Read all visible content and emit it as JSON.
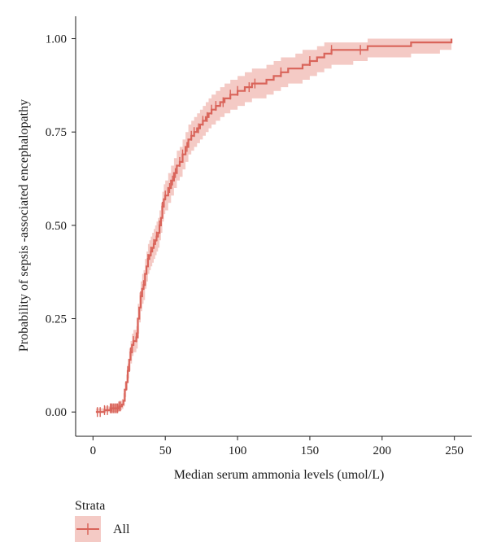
{
  "colors": {
    "line": "#d9645a",
    "band": "#f0b8b2",
    "axis": "#1a1a1a"
  },
  "chart_data": {
    "type": "line",
    "title": "",
    "xlabel": "Median serum ammonia levels (umol/L)",
    "ylabel": "Probability of sepsis -associated encephalopathy",
    "xlim": [
      -12,
      262
    ],
    "ylim": [
      -0.065,
      1.06
    ],
    "x_ticks": [
      0,
      50,
      100,
      150,
      200,
      250
    ],
    "x_tick_labels": [
      "0",
      "50",
      "100",
      "150",
      "200",
      "250"
    ],
    "y_ticks": [
      0,
      0.25,
      0.5,
      0.75,
      1.0
    ],
    "y_tick_labels": [
      "0.00",
      "0.25",
      "0.50",
      "0.75",
      "1.00"
    ],
    "grid": false,
    "legend": {
      "position": "bottom-left",
      "title": "Strata"
    },
    "series": [
      {
        "name": "All",
        "step": true,
        "x": [
          2,
          8,
          12,
          15,
          18,
          20,
          21,
          22,
          23,
          24,
          25,
          26,
          27,
          28,
          29,
          30,
          31,
          32,
          33,
          34,
          35,
          36,
          37,
          38,
          39,
          40,
          41,
          42,
          43,
          44,
          45,
          46,
          47,
          48,
          49,
          50,
          52,
          54,
          56,
          58,
          60,
          62,
          64,
          66,
          68,
          70,
          72,
          74,
          76,
          78,
          80,
          82,
          85,
          88,
          91,
          95,
          100,
          105,
          110,
          115,
          120,
          125,
          130,
          135,
          140,
          145,
          150,
          155,
          160,
          165,
          170,
          180,
          190,
          200,
          210,
          220,
          230,
          240,
          248
        ],
        "y": [
          0.0,
          0.005,
          0.01,
          0.01,
          0.015,
          0.02,
          0.03,
          0.06,
          0.08,
          0.11,
          0.14,
          0.16,
          0.18,
          0.19,
          0.19,
          0.2,
          0.25,
          0.28,
          0.31,
          0.33,
          0.34,
          0.37,
          0.39,
          0.41,
          0.42,
          0.43,
          0.44,
          0.45,
          0.46,
          0.47,
          0.48,
          0.5,
          0.52,
          0.55,
          0.57,
          0.58,
          0.6,
          0.62,
          0.64,
          0.66,
          0.67,
          0.69,
          0.71,
          0.73,
          0.74,
          0.75,
          0.76,
          0.77,
          0.78,
          0.79,
          0.8,
          0.81,
          0.82,
          0.83,
          0.84,
          0.85,
          0.86,
          0.87,
          0.88,
          0.88,
          0.89,
          0.9,
          0.91,
          0.92,
          0.92,
          0.93,
          0.94,
          0.95,
          0.96,
          0.97,
          0.97,
          0.97,
          0.98,
          0.98,
          0.98,
          0.99,
          0.99,
          0.99,
          1.0
        ],
        "ci_lower": [
          0.0,
          0.0,
          0.0,
          0.0,
          0.005,
          0.008,
          0.015,
          0.04,
          0.06,
          0.09,
          0.11,
          0.13,
          0.15,
          0.16,
          0.16,
          0.17,
          0.21,
          0.24,
          0.27,
          0.29,
          0.3,
          0.33,
          0.35,
          0.37,
          0.38,
          0.39,
          0.4,
          0.41,
          0.42,
          0.43,
          0.44,
          0.46,
          0.48,
          0.51,
          0.53,
          0.54,
          0.56,
          0.58,
          0.6,
          0.62,
          0.63,
          0.65,
          0.67,
          0.69,
          0.7,
          0.71,
          0.72,
          0.73,
          0.74,
          0.75,
          0.76,
          0.77,
          0.78,
          0.79,
          0.8,
          0.81,
          0.82,
          0.83,
          0.84,
          0.84,
          0.85,
          0.86,
          0.87,
          0.88,
          0.88,
          0.89,
          0.9,
          0.91,
          0.92,
          0.93,
          0.93,
          0.94,
          0.95,
          0.95,
          0.95,
          0.96,
          0.96,
          0.97,
          0.98
        ],
        "ci_upper": [
          0.01,
          0.015,
          0.02,
          0.022,
          0.03,
          0.035,
          0.05,
          0.08,
          0.1,
          0.13,
          0.17,
          0.19,
          0.21,
          0.22,
          0.22,
          0.23,
          0.29,
          0.32,
          0.35,
          0.37,
          0.38,
          0.41,
          0.43,
          0.45,
          0.46,
          0.47,
          0.48,
          0.49,
          0.5,
          0.51,
          0.52,
          0.54,
          0.56,
          0.59,
          0.61,
          0.62,
          0.64,
          0.66,
          0.68,
          0.7,
          0.71,
          0.73,
          0.75,
          0.77,
          0.78,
          0.79,
          0.8,
          0.81,
          0.82,
          0.83,
          0.84,
          0.85,
          0.86,
          0.87,
          0.88,
          0.89,
          0.9,
          0.91,
          0.92,
          0.92,
          0.93,
          0.94,
          0.95,
          0.95,
          0.96,
          0.97,
          0.97,
          0.98,
          0.99,
          0.99,
          0.99,
          0.99,
          1.0,
          1.0,
          1.0,
          1.0,
          1.0,
          1.0,
          1.0
        ],
        "censor_x": [
          3,
          5,
          8,
          10,
          12,
          13,
          14,
          15,
          16,
          17,
          18,
          19,
          24,
          26,
          28,
          30,
          33,
          35,
          38,
          40,
          42,
          44,
          46,
          48,
          50,
          53,
          55,
          57,
          60,
          62,
          65,
          68,
          70,
          73,
          76,
          79,
          82,
          85,
          90,
          95,
          100,
          108,
          112,
          130,
          150,
          165,
          185
        ]
      }
    ]
  }
}
